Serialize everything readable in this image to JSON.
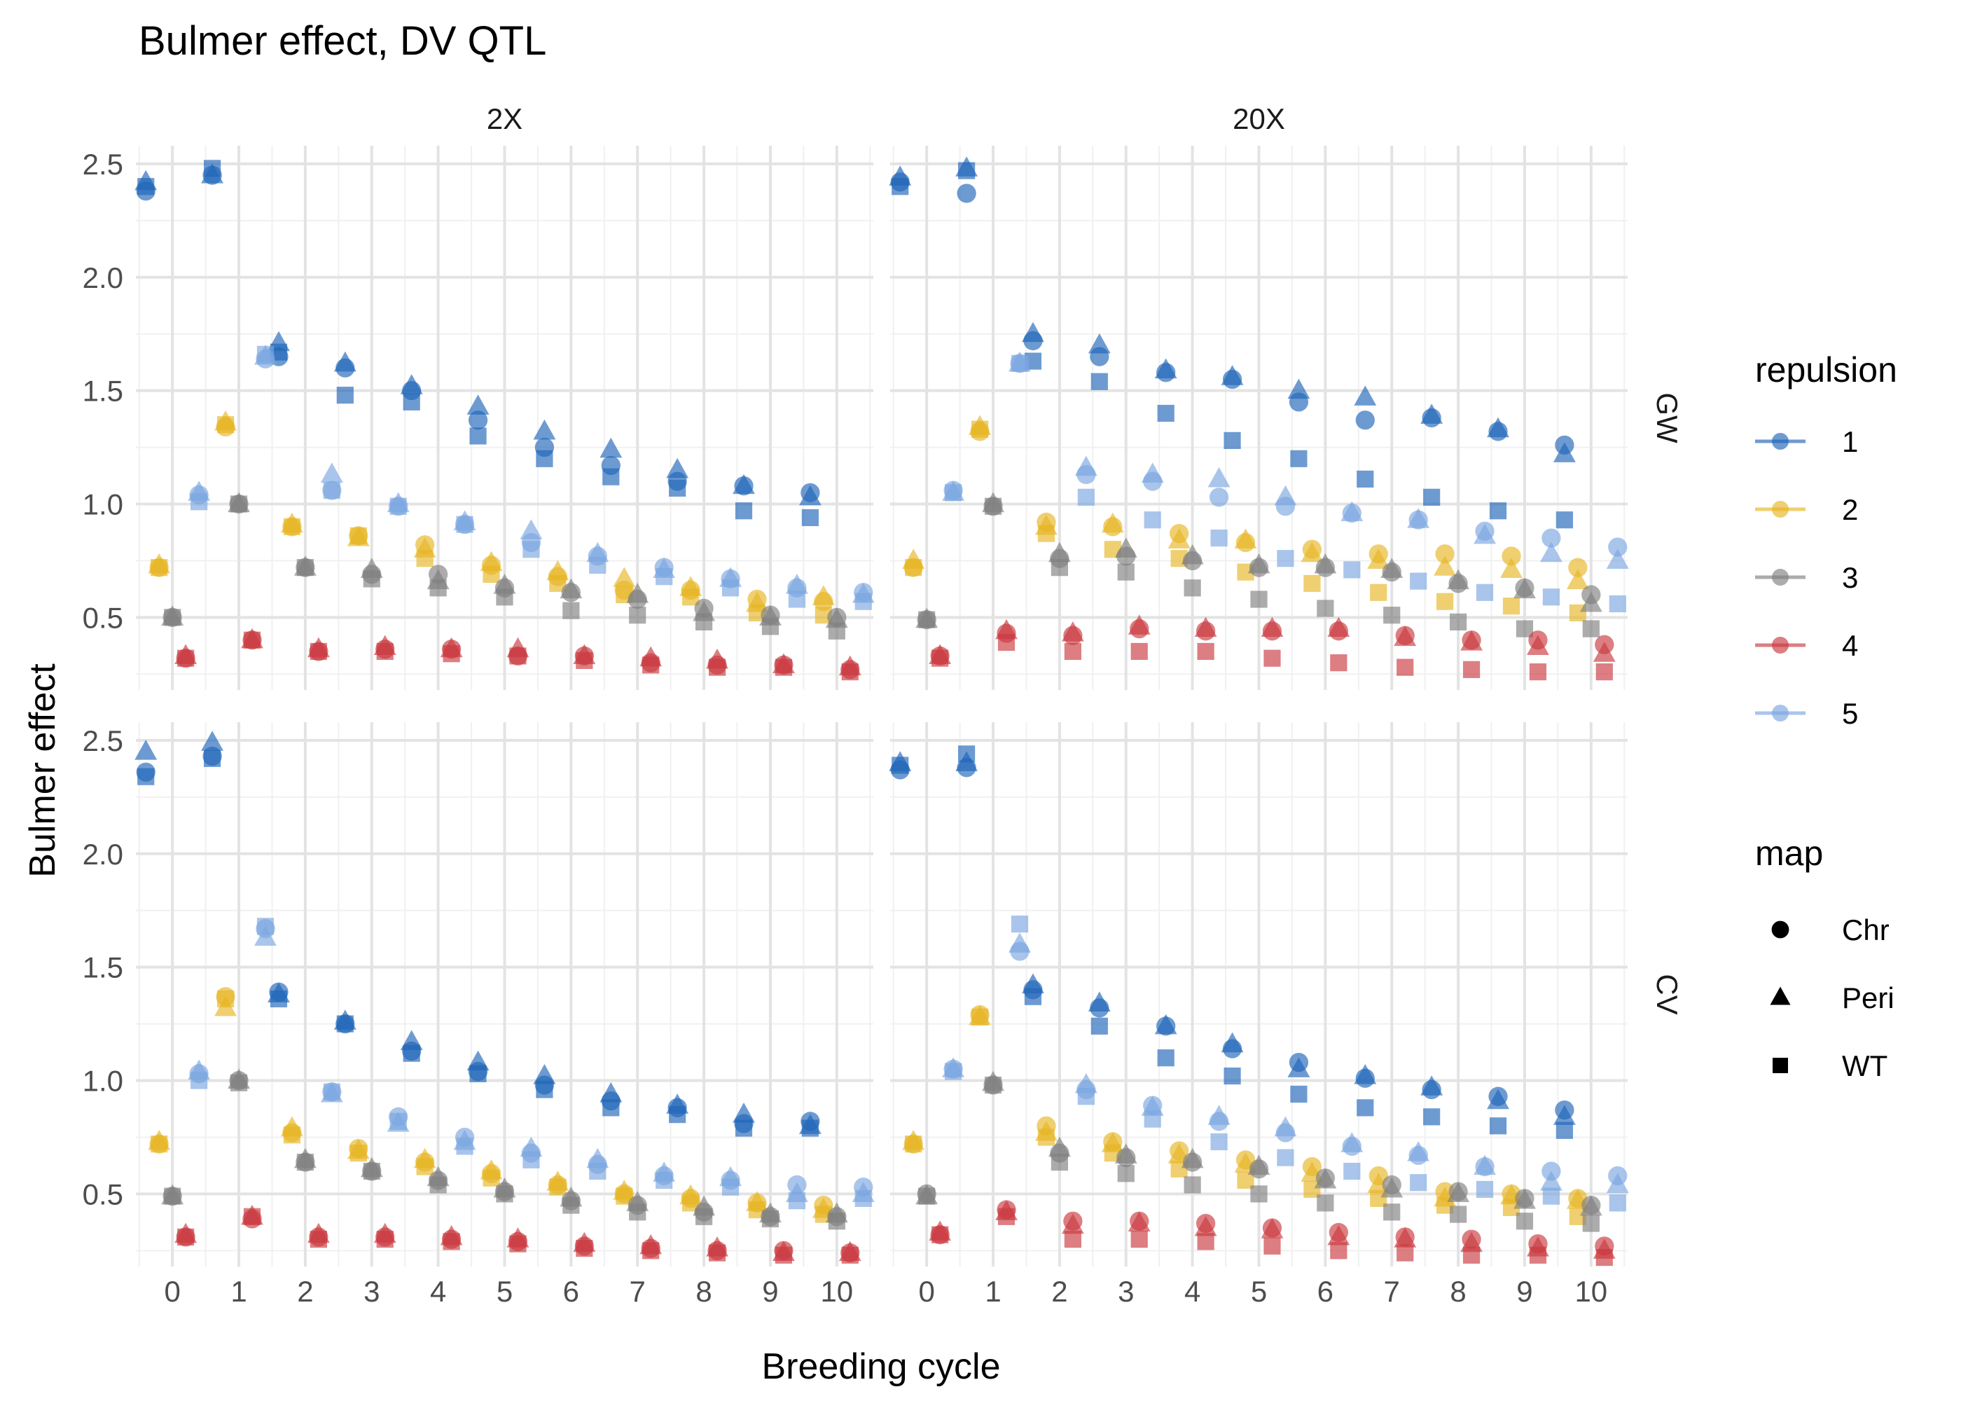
{
  "chart_data": {
    "type": "scatter",
    "title": "Bulmer effect, DV QTL",
    "xlabel": "Breeding cycle",
    "ylabel": "Bulmer effect",
    "xlim": [
      -0.55,
      10.55
    ],
    "ylim": [
      0.18,
      2.58
    ],
    "x_ticks": [
      0,
      1,
      2,
      3,
      4,
      5,
      6,
      7,
      8,
      9,
      10
    ],
    "y_ticks": [
      0.5,
      1.0,
      1.5,
      2.0,
      2.5
    ],
    "y_tick_labels": [
      "0.5",
      "1.0",
      "1.5",
      "2.0",
      "2.5"
    ],
    "grid": true,
    "columns": [
      "2X",
      "20X"
    ],
    "rows": [
      "GW",
      "CV"
    ],
    "legend_placement": "right",
    "legend": {
      "repulsion": {
        "title": "repulsion",
        "entries": [
          {
            "label": "1",
            "color": "#1f66b8"
          },
          {
            "label": "2",
            "color": "#e6b523"
          },
          {
            "label": "3",
            "color": "#7f7f7f"
          },
          {
            "label": "4",
            "color": "#c9393f"
          },
          {
            "label": "5",
            "color": "#7ba6e0"
          }
        ]
      },
      "map": {
        "title": "map",
        "entries": [
          {
            "label": "Chr",
            "shape": "circle"
          },
          {
            "label": "Peri",
            "shape": "triangle"
          },
          {
            "label": "WT",
            "shape": "square"
          }
        ]
      }
    },
    "dodge_offsets": [
      -0.4,
      -0.2,
      0.0,
      0.2,
      0.4
    ],
    "panels": [
      {
        "column": "2X",
        "row": "GW",
        "series": [
          {
            "repulsion": "1",
            "Chr": [
              2.38,
              2.45,
              1.65,
              1.6,
              1.5,
              1.37,
              1.25,
              1.17,
              1.1,
              1.08,
              1.05
            ],
            "Peri": [
              2.42,
              2.45,
              1.71,
              1.62,
              1.52,
              1.43,
              1.32,
              1.24,
              1.15,
              1.08,
              1.03
            ],
            "WT": [
              2.4,
              2.48,
              1.67,
              1.48,
              1.45,
              1.3,
              1.2,
              1.12,
              1.07,
              0.97,
              0.94
            ]
          },
          {
            "repulsion": "2",
            "Chr": [
              0.72,
              1.34,
              0.9,
              0.86,
              0.82,
              0.73,
              0.68,
              0.62,
              0.62,
              0.58,
              0.57
            ],
            "Peri": [
              0.73,
              1.36,
              0.91,
              0.85,
              0.8,
              0.74,
              0.7,
              0.67,
              0.63,
              0.56,
              0.59
            ],
            "WT": [
              0.72,
              1.35,
              0.9,
              0.86,
              0.76,
              0.69,
              0.65,
              0.6,
              0.59,
              0.52,
              0.51
            ]
          },
          {
            "repulsion": "3",
            "Chr": [
              0.5,
              1.0,
              0.72,
              0.69,
              0.69,
              0.63,
              0.61,
              0.58,
              0.54,
              0.51,
              0.5
            ],
            "Peri": [
              0.5,
              1.0,
              0.72,
              0.71,
              0.66,
              0.64,
              0.62,
              0.6,
              0.52,
              0.5,
              0.49
            ],
            "WT": [
              0.5,
              1.0,
              0.72,
              0.67,
              0.63,
              0.59,
              0.53,
              0.51,
              0.48,
              0.46,
              0.44
            ]
          },
          {
            "repulsion": "4",
            "Chr": [
              0.32,
              0.4,
              0.35,
              0.36,
              0.36,
              0.33,
              0.33,
              0.3,
              0.29,
              0.29,
              0.27
            ],
            "Peri": [
              0.33,
              0.4,
              0.36,
              0.37,
              0.36,
              0.36,
              0.33,
              0.32,
              0.31,
              0.29,
              0.28
            ],
            "WT": [
              0.32,
              0.4,
              0.35,
              0.35,
              0.34,
              0.33,
              0.31,
              0.29,
              0.28,
              0.28,
              0.26
            ]
          },
          {
            "repulsion": "5",
            "Chr": [
              1.04,
              1.64,
              1.06,
              0.99,
              0.91,
              0.83,
              0.77,
              0.72,
              0.67,
              0.63,
              0.61
            ],
            "Peri": [
              1.05,
              1.65,
              1.13,
              1.0,
              0.92,
              0.88,
              0.78,
              0.71,
              0.67,
              0.64,
              0.6
            ],
            "WT": [
              1.01,
              1.66,
              1.06,
              0.99,
              0.91,
              0.8,
              0.73,
              0.68,
              0.63,
              0.58,
              0.57
            ]
          }
        ]
      },
      {
        "column": "20X",
        "row": "GW",
        "series": [
          {
            "repulsion": "1",
            "Chr": [
              2.42,
              2.37,
              1.72,
              1.65,
              1.58,
              1.55,
              1.45,
              1.37,
              1.38,
              1.32,
              1.26
            ],
            "Peri": [
              2.44,
              2.48,
              1.75,
              1.7,
              1.59,
              1.56,
              1.5,
              1.47,
              1.39,
              1.33,
              1.22
            ],
            "WT": [
              2.4,
              2.47,
              1.63,
              1.54,
              1.4,
              1.28,
              1.2,
              1.11,
              1.03,
              0.97,
              0.93
            ]
          },
          {
            "repulsion": "2",
            "Chr": [
              0.72,
              1.32,
              0.92,
              0.9,
              0.87,
              0.83,
              0.8,
              0.78,
              0.78,
              0.77,
              0.72
            ],
            "Peri": [
              0.75,
              1.34,
              0.9,
              0.91,
              0.84,
              0.84,
              0.78,
              0.75,
              0.72,
              0.71,
              0.66
            ],
            "WT": [
              0.72,
              1.33,
              0.87,
              0.8,
              0.76,
              0.7,
              0.65,
              0.61,
              0.57,
              0.55,
              0.52
            ]
          },
          {
            "repulsion": "3",
            "Chr": [
              0.49,
              0.99,
              0.76,
              0.77,
              0.75,
              0.72,
              0.72,
              0.7,
              0.65,
              0.63,
              0.6
            ],
            "Peri": [
              0.49,
              1.0,
              0.78,
              0.8,
              0.77,
              0.73,
              0.73,
              0.71,
              0.66,
              0.62,
              0.56
            ],
            "WT": [
              0.49,
              0.99,
              0.72,
              0.7,
              0.63,
              0.58,
              0.54,
              0.51,
              0.48,
              0.45,
              0.45
            ]
          },
          {
            "repulsion": "4",
            "Chr": [
              0.33,
              0.43,
              0.42,
              0.45,
              0.44,
              0.44,
              0.44,
              0.42,
              0.4,
              0.4,
              0.38
            ],
            "Peri": [
              0.33,
              0.44,
              0.43,
              0.46,
              0.45,
              0.45,
              0.45,
              0.41,
              0.39,
              0.37,
              0.34
            ],
            "WT": [
              0.32,
              0.39,
              0.35,
              0.35,
              0.35,
              0.32,
              0.3,
              0.28,
              0.27,
              0.26,
              0.26
            ]
          },
          {
            "repulsion": "5",
            "Chr": [
              1.06,
              1.62,
              1.13,
              1.1,
              1.03,
              0.99,
              0.96,
              0.93,
              0.88,
              0.85,
              0.81
            ],
            "Peri": [
              1.05,
              1.62,
              1.16,
              1.13,
              1.11,
              1.03,
              0.96,
              0.93,
              0.86,
              0.78,
              0.75
            ],
            "WT": [
              1.05,
              1.62,
              1.03,
              0.93,
              0.85,
              0.76,
              0.71,
              0.66,
              0.61,
              0.59,
              0.56
            ]
          }
        ]
      },
      {
        "column": "2X",
        "row": "CV",
        "series": [
          {
            "repulsion": "1",
            "Chr": [
              2.36,
              2.43,
              1.39,
              1.25,
              1.13,
              1.04,
              0.98,
              0.91,
              0.88,
              0.81,
              0.82
            ],
            "Peri": [
              2.45,
              2.49,
              1.38,
              1.26,
              1.17,
              1.08,
              1.02,
              0.94,
              0.89,
              0.85,
              0.8
            ],
            "WT": [
              2.34,
              2.42,
              1.36,
              1.25,
              1.12,
              1.03,
              0.96,
              0.88,
              0.85,
              0.79,
              0.79
            ]
          },
          {
            "repulsion": "2",
            "Chr": [
              0.72,
              1.37,
              0.77,
              0.7,
              0.64,
              0.59,
              0.54,
              0.5,
              0.48,
              0.46,
              0.45
            ],
            "Peri": [
              0.73,
              1.32,
              0.79,
              0.69,
              0.65,
              0.6,
              0.55,
              0.51,
              0.49,
              0.46,
              0.43
            ],
            "WT": [
              0.72,
              1.36,
              0.76,
              0.68,
              0.62,
              0.57,
              0.53,
              0.49,
              0.46,
              0.43,
              0.41
            ]
          },
          {
            "repulsion": "3",
            "Chr": [
              0.49,
              1.0,
              0.64,
              0.6,
              0.56,
              0.51,
              0.47,
              0.45,
              0.42,
              0.4,
              0.4
            ],
            "Peri": [
              0.49,
              1.0,
              0.65,
              0.61,
              0.57,
              0.52,
              0.48,
              0.46,
              0.44,
              0.41,
              0.41
            ],
            "WT": [
              0.49,
              0.99,
              0.64,
              0.6,
              0.54,
              0.5,
              0.45,
              0.42,
              0.4,
              0.39,
              0.38
            ]
          },
          {
            "repulsion": "4",
            "Chr": [
              0.31,
              0.39,
              0.31,
              0.31,
              0.3,
              0.29,
              0.27,
              0.26,
              0.25,
              0.25,
              0.24
            ],
            "Peri": [
              0.32,
              0.4,
              0.32,
              0.32,
              0.31,
              0.3,
              0.28,
              0.27,
              0.26,
              0.24,
              0.24
            ],
            "WT": [
              0.31,
              0.4,
              0.3,
              0.3,
              0.29,
              0.28,
              0.26,
              0.25,
              0.24,
              0.23,
              0.23
            ]
          },
          {
            "repulsion": "5",
            "Chr": [
              1.03,
              1.67,
              0.95,
              0.84,
              0.75,
              0.68,
              0.63,
              0.58,
              0.56,
              0.54,
              0.53
            ],
            "Peri": [
              1.04,
              1.63,
              0.94,
              0.81,
              0.73,
              0.7,
              0.65,
              0.59,
              0.57,
              0.5,
              0.5
            ],
            "WT": [
              1.0,
              1.68,
              0.95,
              0.82,
              0.71,
              0.65,
              0.6,
              0.56,
              0.53,
              0.47,
              0.48
            ]
          }
        ]
      },
      {
        "column": "20X",
        "row": "CV",
        "series": [
          {
            "repulsion": "1",
            "Chr": [
              2.37,
              2.38,
              1.4,
              1.32,
              1.24,
              1.14,
              1.08,
              1.01,
              0.96,
              0.93,
              0.87
            ],
            "Peri": [
              2.4,
              2.4,
              1.42,
              1.34,
              1.24,
              1.16,
              1.05,
              1.02,
              0.97,
              0.91,
              0.84
            ],
            "WT": [
              2.39,
              2.44,
              1.37,
              1.24,
              1.1,
              1.02,
              0.94,
              0.88,
              0.84,
              0.8,
              0.78
            ]
          },
          {
            "repulsion": "2",
            "Chr": [
              0.72,
              1.29,
              0.8,
              0.73,
              0.69,
              0.65,
              0.62,
              0.58,
              0.51,
              0.5,
              0.48
            ],
            "Peri": [
              0.73,
              1.28,
              0.77,
              0.72,
              0.67,
              0.63,
              0.59,
              0.54,
              0.48,
              0.49,
              0.47
            ],
            "WT": [
              0.72,
              1.28,
              0.75,
              0.68,
              0.61,
              0.56,
              0.52,
              0.48,
              0.45,
              0.44,
              0.4
            ]
          },
          {
            "repulsion": "3",
            "Chr": [
              0.5,
              0.98,
              0.68,
              0.66,
              0.64,
              0.61,
              0.57,
              0.54,
              0.51,
              0.48,
              0.45
            ],
            "Peri": [
              0.49,
              0.99,
              0.7,
              0.67,
              0.65,
              0.62,
              0.56,
              0.52,
              0.5,
              0.47,
              0.44
            ],
            "WT": [
              0.49,
              0.98,
              0.64,
              0.59,
              0.54,
              0.5,
              0.46,
              0.42,
              0.41,
              0.38,
              0.37
            ]
          },
          {
            "repulsion": "4",
            "Chr": [
              0.32,
              0.43,
              0.38,
              0.38,
              0.37,
              0.35,
              0.33,
              0.31,
              0.3,
              0.28,
              0.27
            ],
            "Peri": [
              0.33,
              0.42,
              0.36,
              0.37,
              0.35,
              0.34,
              0.31,
              0.3,
              0.28,
              0.26,
              0.25
            ],
            "WT": [
              0.32,
              0.4,
              0.3,
              0.3,
              0.29,
              0.27,
              0.25,
              0.24,
              0.23,
              0.23,
              0.22
            ]
          },
          {
            "repulsion": "5",
            "Chr": [
              1.05,
              1.57,
              0.96,
              0.89,
              0.82,
              0.77,
              0.71,
              0.67,
              0.62,
              0.6,
              0.58
            ],
            "Peri": [
              1.05,
              1.6,
              0.98,
              0.88,
              0.84,
              0.79,
              0.72,
              0.68,
              0.62,
              0.55,
              0.54
            ],
            "WT": [
              1.04,
              1.69,
              0.93,
              0.83,
              0.73,
              0.66,
              0.6,
              0.55,
              0.52,
              0.49,
              0.46
            ]
          }
        ]
      }
    ]
  }
}
